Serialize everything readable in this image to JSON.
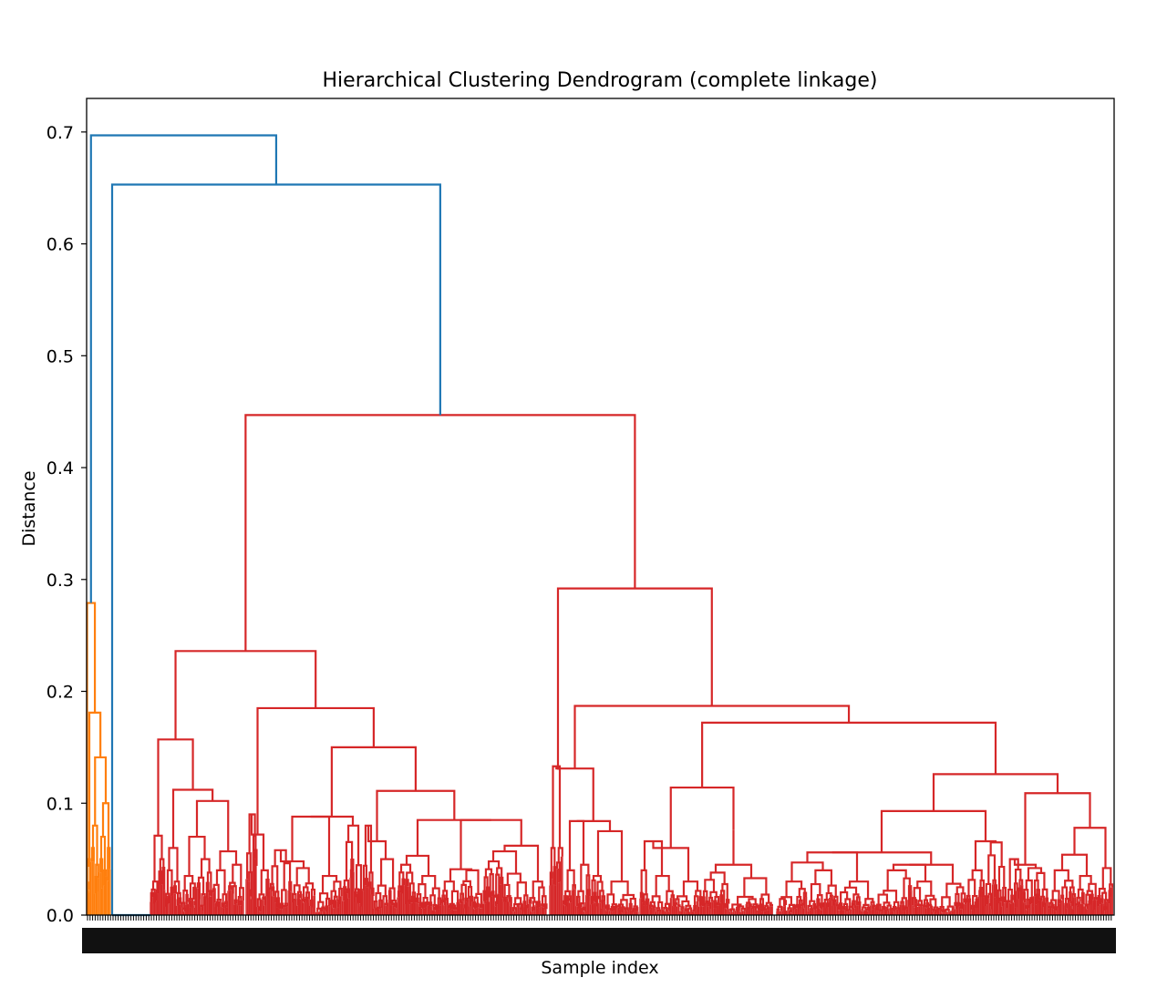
{
  "chart_data": {
    "type": "dendrogram",
    "title": "Hierarchical Clustering Dendrogram (complete linkage)",
    "xlabel": "Sample index",
    "ylabel": "Distance",
    "ylim": [
      0.0,
      0.73
    ],
    "yticks": [
      "0.0",
      "0.1",
      "0.2",
      "0.3",
      "0.4",
      "0.5",
      "0.6",
      "0.7"
    ],
    "grid": false,
    "colors": {
      "orange_cluster": "#ff7f0e",
      "red_cluster": "#d62728",
      "link_above_threshold": "#1f77b4"
    },
    "merges": [
      {
        "id": "root",
        "height": 0.697,
        "color": "#1f77b4"
      },
      {
        "id": "upper_main",
        "height": 0.653,
        "color": "#1f77b4"
      },
      {
        "id": "red_top",
        "height": 0.447,
        "color": "#d62728"
      },
      {
        "id": "red_right",
        "height": 0.292,
        "color": "#d62728"
      },
      {
        "id": "orange_top",
        "height": 0.279,
        "color": "#ff7f0e"
      },
      {
        "id": "red_left",
        "height": 0.236,
        "color": "#d62728"
      },
      {
        "id": "red_right_b",
        "height": 0.187,
        "color": "#d62728"
      },
      {
        "id": "red_left_b",
        "height": 0.185,
        "color": "#d62728"
      },
      {
        "id": "red_right_c",
        "height": 0.172,
        "color": "#d62728"
      },
      {
        "id": "red_left_a",
        "height": 0.157,
        "color": "#d62728"
      },
      {
        "id": "red_left_c",
        "height": 0.15,
        "color": "#d62728"
      },
      {
        "id": "red_right_d",
        "height": 0.126,
        "color": "#d62728"
      },
      {
        "id": "red_right_e",
        "height": 0.114,
        "color": "#d62728"
      },
      {
        "id": "red_left_d",
        "height": 0.111,
        "color": "#d62728"
      },
      {
        "id": "red_right_f",
        "height": 0.109,
        "color": "#d62728"
      },
      {
        "id": "red_right_g",
        "height": 0.093,
        "color": "#d62728"
      },
      {
        "id": "red_left_e",
        "height": 0.088,
        "color": "#d62728"
      },
      {
        "id": "red_left_f",
        "height": 0.085,
        "color": "#d62728"
      },
      {
        "id": "red_right_h",
        "height": 0.078,
        "color": "#d62728"
      },
      {
        "id": "red_right_i",
        "height": 0.076,
        "color": "#d62728"
      },
      {
        "id": "red_right_j",
        "height": 0.056,
        "color": "#d62728"
      },
      {
        "id": "red_right_k",
        "height": 0.045,
        "color": "#d62728"
      }
    ]
  }
}
